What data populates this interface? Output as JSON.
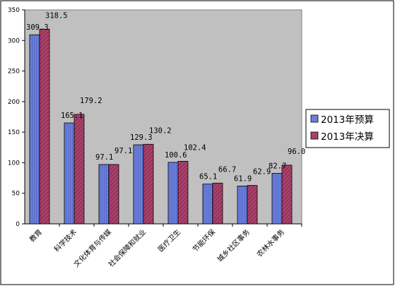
{
  "chart_data": {
    "type": "bar",
    "categories": [
      "教育",
      "科学技术",
      "文化体育与传媒",
      "社会保障和就业",
      "医疗卫生",
      "节能环保",
      "城乡社区事务",
      "农林水事务"
    ],
    "series": [
      {
        "name": "2013年预算",
        "values": [
          309.3,
          165.1,
          97.1,
          129.3,
          100.6,
          65.1,
          61.9,
          82.7
        ],
        "labels": [
          "309.3",
          "165.1",
          "97.1",
          "129.3",
          "100.6",
          "65.1",
          "61.9",
          "82.7"
        ],
        "color": "#6b7fd9"
      },
      {
        "name": "2013年决算",
        "values": [
          318.5,
          179.2,
          97.1,
          130.2,
          102.4,
          66.7,
          62.9,
          96.0
        ],
        "labels": [
          "318.5",
          "179.2",
          "97.1",
          "130.2",
          "102.4",
          "66.7",
          "62.9",
          "96.0"
        ],
        "color": "#a8426b"
      }
    ],
    "y_ticks": [
      "0",
      "50",
      "100",
      "150",
      "200",
      "250",
      "300",
      "350"
    ],
    "ylim": [
      0,
      350
    ],
    "grid": false,
    "legend": "right",
    "plot_background": "#c0c0c0"
  }
}
